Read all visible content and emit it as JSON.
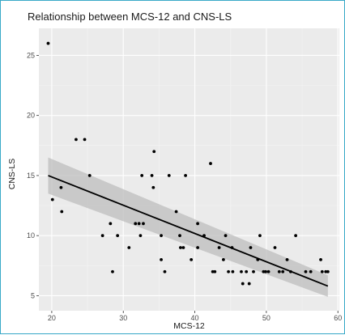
{
  "chart_data": {
    "type": "scatter",
    "title": "Relationship between MCS-12 and CNS-LS",
    "xlabel": "MCS-12",
    "ylabel": "CNS-LS",
    "xlim": [
      18.2,
      60.2
    ],
    "ylim": [
      3.75,
      27.25
    ],
    "x_ticks": [
      20,
      30,
      40,
      50,
      60
    ],
    "y_ticks": [
      5,
      10,
      15,
      20,
      25
    ],
    "x_tick_labels": [
      "20",
      "30",
      "40",
      "50",
      "60"
    ],
    "y_tick_labels": [
      "5",
      "10",
      "15",
      "20",
      "25"
    ],
    "grid": true,
    "legend": "none",
    "colors": {
      "panel": "#ebebeb",
      "grid_major": "#ffffff",
      "grid_minor": "#f4f4f4",
      "point": "#000000",
      "line": "#000000",
      "band": "#bebebe",
      "frame": "#39a9c8"
    },
    "points": [
      [
        19.5,
        26
      ],
      [
        20.1,
        13
      ],
      [
        21.3,
        14
      ],
      [
        21.4,
        12
      ],
      [
        23.4,
        18
      ],
      [
        24.6,
        18
      ],
      [
        25.3,
        15
      ],
      [
        27.1,
        10
      ],
      [
        28.2,
        11
      ],
      [
        28.5,
        7
      ],
      [
        29.2,
        10
      ],
      [
        30.8,
        9
      ],
      [
        31.7,
        11
      ],
      [
        32.2,
        11
      ],
      [
        32.4,
        10
      ],
      [
        32.6,
        15
      ],
      [
        32.8,
        11
      ],
      [
        34.0,
        15
      ],
      [
        34.2,
        14
      ],
      [
        34.3,
        17
      ],
      [
        35.3,
        10
      ],
      [
        35.3,
        8
      ],
      [
        35.8,
        7
      ],
      [
        36.4,
        15
      ],
      [
        37.4,
        12
      ],
      [
        37.9,
        10
      ],
      [
        38.0,
        9
      ],
      [
        38.4,
        9
      ],
      [
        38.7,
        15
      ],
      [
        39.5,
        8
      ],
      [
        40.4,
        11
      ],
      [
        40.4,
        9
      ],
      [
        41.3,
        10
      ],
      [
        42.2,
        16
      ],
      [
        42.5,
        7
      ],
      [
        42.8,
        7
      ],
      [
        43.4,
        9
      ],
      [
        44.0,
        8
      ],
      [
        44.3,
        10
      ],
      [
        44.7,
        7
      ],
      [
        45.2,
        9
      ],
      [
        45.3,
        7
      ],
      [
        46.5,
        7
      ],
      [
        46.7,
        6
      ],
      [
        47.2,
        7
      ],
      [
        47.6,
        6
      ],
      [
        47.8,
        9
      ],
      [
        48.2,
        7
      ],
      [
        48.8,
        8
      ],
      [
        49.1,
        10
      ],
      [
        49.6,
        7
      ],
      [
        49.9,
        7
      ],
      [
        50.3,
        7
      ],
      [
        51.2,
        9
      ],
      [
        51.8,
        7
      ],
      [
        52.3,
        7
      ],
      [
        52.9,
        8
      ],
      [
        53.4,
        7
      ],
      [
        54.1,
        10
      ],
      [
        55.5,
        7
      ],
      [
        56.2,
        7
      ],
      [
        57.6,
        8
      ],
      [
        57.8,
        7
      ],
      [
        58.3,
        7
      ],
      [
        58.6,
        7
      ]
    ],
    "regression": {
      "x": [
        19.5,
        58.6
      ],
      "y": [
        15.0,
        5.8
      ],
      "ci_lower": [
        13.5,
        4.9
      ],
      "ci_upper": [
        16.5,
        6.7
      ]
    }
  }
}
